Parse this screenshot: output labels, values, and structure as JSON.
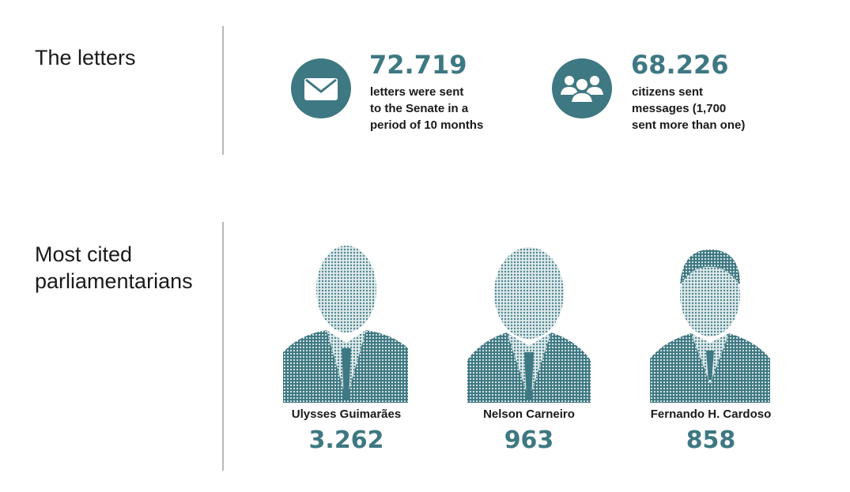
{
  "sections": [
    {
      "title": "The letters",
      "stats": [
        {
          "number": "72.719",
          "description_lines": [
            "letters were sent",
            "to the Senate in a",
            "period of 10 months"
          ]
        },
        {
          "number": "68.226",
          "description_lines": [
            "citizens sent",
            "messages (1,700",
            "sent more than one)"
          ]
        }
      ]
    },
    {
      "title_lines": [
        "Most cited",
        "parliamentarians"
      ],
      "people": [
        {
          "name": "Ulysses Guimarães",
          "count": "3.262"
        },
        {
          "name": "Nelson Carneiro",
          "count": "963"
        },
        {
          "name": "Fernando H. Cardoso",
          "count": "858"
        }
      ]
    }
  ]
}
